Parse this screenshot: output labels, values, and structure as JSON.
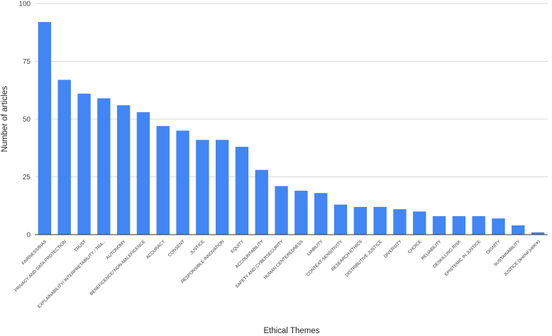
{
  "chart_data": {
    "type": "bar",
    "title": "",
    "xlabel": "Ethical Themes",
    "ylabel": "Number of articles",
    "ylim": [
      0,
      100
    ],
    "yticks": [
      0,
      25,
      50,
      75,
      100
    ],
    "grid": true,
    "bar_color": "#4285f4",
    "categories": [
      "FAIRNESS/BIAS",
      "PRIVACY AND DATA PROTECTION",
      "TRUST",
      "EXPLAINABILITY/ INTERPRETABILITY / TRA...",
      "AUTONOMY",
      "BENEFICENCE/ NON-MALEFICENCE",
      "ACCURACY",
      "CONSENT",
      "JUSTICE",
      "RESPONSIBLE INNOVATION",
      "EQUITY",
      "ACCOUNTABILITY",
      "SAFETY AND CYBERSECURITY",
      "HUMAN CENTEREDNESS",
      "LIABILITY",
      "CONTEXT-SENSITIVITY",
      "RESEARCH ETHICS",
      "DISTRIBUTIVE JUSTICE",
      "DIVERSITY",
      "CHOICE",
      "RELIABILITY",
      "DESKILLING RISK",
      "EPISTEMIC IN JUSTICE",
      "DIGNITY",
      "SUSTAINABILITY",
      "JUSTICE (animal justice)"
    ],
    "values": [
      92,
      67,
      61,
      59,
      56,
      53,
      47,
      45,
      41,
      41,
      38,
      28,
      21,
      19,
      18,
      13,
      12,
      12,
      11,
      10,
      8,
      8,
      8,
      7,
      4,
      1
    ]
  }
}
